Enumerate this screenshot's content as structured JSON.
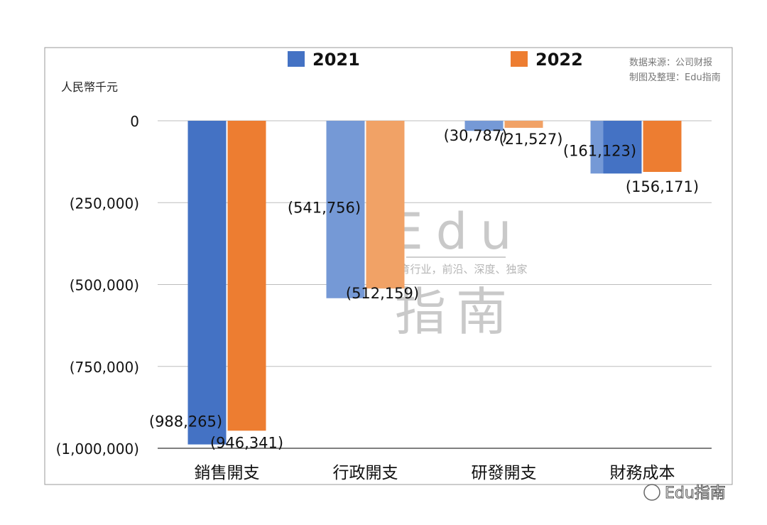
{
  "chart_data": {
    "type": "bar",
    "unit_label": "人民幣千元",
    "categories": [
      "銷售開支",
      "行政開支",
      "研發開支",
      "財務成本"
    ],
    "series": [
      {
        "name": "2021",
        "color": "#4472C4",
        "values": [
          -988265,
          -541756,
          -30787,
          -161123
        ],
        "labels": [
          "(988,265)",
          "(541,756)",
          "(30,787)",
          "(161,123)"
        ]
      },
      {
        "name": "2022",
        "color": "#ED7D31",
        "values": [
          -946341,
          -512159,
          -21527,
          -156171
        ],
        "labels": [
          "(946,341)",
          "(512,159)",
          "(21,527)",
          "(156,171)"
        ]
      }
    ],
    "ylim": [
      -1000000,
      0
    ],
    "yticks": [
      0,
      -250000,
      -500000,
      -750000,
      -1000000
    ],
    "ytick_labels": [
      "0",
      "(250,000)",
      "(500,000)",
      "(750,000)",
      "(1,000,000)"
    ],
    "grid": true,
    "legend_position": "top"
  },
  "source_note": {
    "line1": "数据来源：公司财报",
    "line2": "制图及整理：Edu指南"
  },
  "watermark": {
    "top": "Edu",
    "middle": "教育行业，前沿、深度、独家",
    "bottom": "指南"
  },
  "wechat_tag": "Edu指南"
}
